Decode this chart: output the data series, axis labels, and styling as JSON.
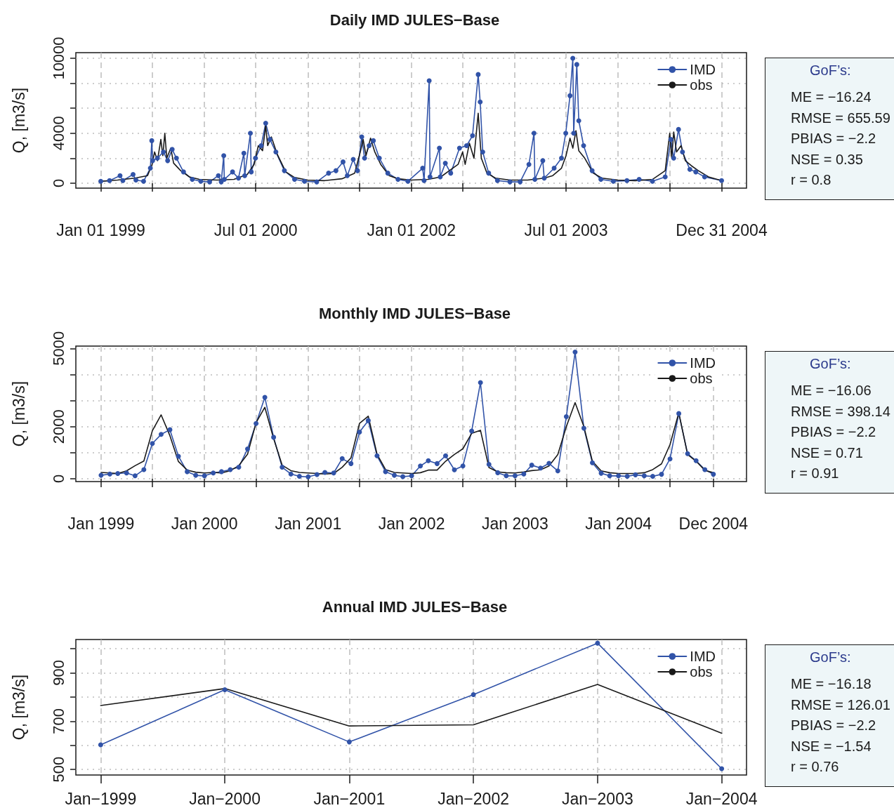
{
  "chart_data": [
    {
      "type": "line",
      "title": "Daily IMD JULES−Base",
      "ylabel": "Q, [m3/s]",
      "xlim": [
        "1998-10-05",
        "2005-03-29"
      ],
      "ylim": [
        -400,
        10450
      ],
      "xticks": [
        {
          "value": "1999-01-01",
          "label": "Jan 01 1999"
        },
        {
          "value": "1999-07-01",
          "label": null
        },
        {
          "value": "2000-01-01",
          "label": null
        },
        {
          "value": "2000-07-01",
          "label": "Jul 01 2000"
        },
        {
          "value": "2001-01-01",
          "label": null
        },
        {
          "value": "2001-07-01",
          "label": null
        },
        {
          "value": "2002-01-01",
          "label": "Jan 01 2002"
        },
        {
          "value": "2002-07-01",
          "label": null
        },
        {
          "value": "2003-01-01",
          "label": null
        },
        {
          "value": "2003-07-01",
          "label": "Jul 01 2003"
        },
        {
          "value": "2004-01-01",
          "label": null
        },
        {
          "value": "2004-07-01",
          "label": null
        },
        {
          "value": "2004-12-31",
          "label": "Dec 31 2004"
        }
      ],
      "yticks": [
        0,
        {
          "value": 2000,
          "label": null
        },
        4000,
        {
          "value": 6000,
          "label": null
        },
        {
          "value": 8000,
          "label": null
        },
        10000
      ],
      "grid": true,
      "legend": "top right",
      "marker": "circle",
      "annotations": [
        "GoF’s:",
        "ME = −16.24",
        "RMSE = 655.59",
        "PBIAS = −2.2",
        "NSE = 0.35",
        "r = 0.8"
      ],
      "series": [
        {
          "name": "IMD",
          "color": "#3153a8",
          "x": [
            "1999-01-01",
            "1999-02-01",
            "1999-03-10",
            "1999-03-20",
            "1999-04-25",
            "1999-05-05",
            "1999-06-01",
            "1999-06-25",
            "1999-06-30",
            "1999-07-03",
            "1999-07-20",
            "1999-08-10",
            "1999-08-25",
            "1999-09-10",
            "1999-09-25",
            "1999-10-20",
            "1999-11-20",
            "1999-12-20",
            "2000-01-20",
            "2000-02-20",
            "2000-03-01",
            "2000-03-10",
            "2000-03-12",
            "2000-04-10",
            "2000-05-01",
            "2000-05-20",
            "2000-05-23",
            "2000-06-12",
            "2000-06-15",
            "2000-06-30",
            "2000-07-20",
            "2000-08-05",
            "2000-08-20",
            "2000-09-10",
            "2000-10-10",
            "2000-11-15",
            "2000-12-20",
            "2001-02-01",
            "2001-03-15",
            "2001-04-10",
            "2001-05-05",
            "2001-05-20",
            "2001-06-10",
            "2001-06-25",
            "2001-07-10",
            "2001-07-20",
            "2001-08-05",
            "2001-08-20",
            "2001-09-10",
            "2001-10-10",
            "2001-11-15",
            "2001-12-20",
            "2002-02-10",
            "2002-02-15",
            "2002-03-05",
            "2002-03-08",
            "2002-04-10",
            "2002-04-13",
            "2002-05-01",
            "2002-05-20",
            "2002-06-20",
            "2002-07-15",
            "2002-08-05",
            "2002-08-25",
            "2002-09-01",
            "2002-09-10",
            "2002-10-01",
            "2002-11-01",
            "2002-12-15",
            "2003-01-20",
            "2003-02-20",
            "2003-03-10",
            "2003-03-13",
            "2003-04-10",
            "2003-04-15",
            "2003-05-20",
            "2003-06-15",
            "2003-06-30",
            "2003-07-15",
            "2003-07-25",
            "2003-07-28",
            "2003-08-08",
            "2003-08-15",
            "2003-09-01",
            "2003-10-01",
            "2003-11-01",
            "2003-12-15",
            "2004-02-01",
            "2004-03-15",
            "2004-05-01",
            "2004-06-15",
            "2004-07-05",
            "2004-07-15",
            "2004-08-01",
            "2004-08-15",
            "2004-09-10",
            "2004-10-01",
            "2004-11-01",
            "2004-12-31"
          ],
          "values": [
            150,
            200,
            600,
            200,
            700,
            250,
            150,
            1200,
            3400,
            1800,
            2000,
            2500,
            1800,
            2700,
            2000,
            900,
            300,
            150,
            100,
            600,
            100,
            2200,
            300,
            900,
            400,
            2400,
            600,
            4000,
            900,
            2000,
            3000,
            4800,
            3500,
            2500,
            1000,
            300,
            150,
            100,
            800,
            1000,
            1700,
            600,
            1900,
            1000,
            3700,
            2000,
            3000,
            3400,
            2000,
            800,
            300,
            150,
            1200,
            200,
            8200,
            500,
            2800,
            500,
            1600,
            800,
            2800,
            3000,
            3800,
            8700,
            6500,
            2500,
            800,
            200,
            100,
            100,
            1500,
            4000,
            300,
            1800,
            400,
            1200,
            2000,
            4000,
            7000,
            10000,
            4000,
            9500,
            5000,
            3000,
            1000,
            300,
            150,
            200,
            300,
            150,
            500,
            3500,
            2000,
            4300,
            2500,
            1100,
            900,
            500,
            200
          ]
        },
        {
          "name": "obs",
          "color": "#1a1a1a",
          "marker": "none",
          "x": [
            "1999-01-01",
            "1999-03-01",
            "1999-05-01",
            "1999-06-15",
            "1999-07-01",
            "1999-07-10",
            "1999-07-20",
            "1999-08-01",
            "1999-08-08",
            "1999-08-15",
            "1999-08-22",
            "1999-09-05",
            "1999-09-15",
            "1999-10-10",
            "1999-11-10",
            "1999-12-15",
            "2000-02-15",
            "2000-04-15",
            "2000-06-01",
            "2000-06-25",
            "2000-07-10",
            "2000-07-25",
            "2000-08-05",
            "2000-08-12",
            "2000-08-25",
            "2000-09-15",
            "2000-10-15",
            "2000-11-15",
            "2000-12-31",
            "2001-03-01",
            "2001-05-01",
            "2001-06-15",
            "2001-07-05",
            "2001-07-15",
            "2001-07-25",
            "2001-08-10",
            "2001-08-25",
            "2001-09-15",
            "2001-10-15",
            "2001-11-15",
            "2001-12-31",
            "2002-03-01",
            "2002-04-15",
            "2002-05-15",
            "2002-06-15",
            "2002-07-01",
            "2002-07-10",
            "2002-07-25",
            "2002-08-10",
            "2002-08-25",
            "2002-09-05",
            "2002-09-25",
            "2002-10-25",
            "2002-12-15",
            "2003-02-15",
            "2003-04-15",
            "2003-05-15",
            "2003-06-15",
            "2003-07-01",
            "2003-07-15",
            "2003-07-25",
            "2003-08-05",
            "2003-08-15",
            "2003-09-05",
            "2003-10-05",
            "2003-11-05",
            "2003-12-31",
            "2004-03-01",
            "2004-05-01",
            "2004-06-15",
            "2004-07-01",
            "2004-07-08",
            "2004-07-15",
            "2004-07-25",
            "2004-08-10",
            "2004-08-25",
            "2004-09-15",
            "2004-10-10",
            "2004-11-15",
            "2004-12-31"
          ],
          "values": [
            150,
            250,
            400,
            600,
            1500,
            2500,
            1800,
            3500,
            2200,
            4000,
            2000,
            2800,
            1600,
            1000,
            500,
            300,
            250,
            300,
            700,
            1500,
            3000,
            2600,
            4600,
            3000,
            3700,
            2300,
            900,
            450,
            250,
            200,
            350,
            800,
            2500,
            3500,
            2200,
            3600,
            2500,
            1500,
            600,
            350,
            250,
            300,
            500,
            1000,
            1500,
            2500,
            1500,
            3200,
            2000,
            5600,
            2000,
            800,
            400,
            250,
            250,
            400,
            600,
            1200,
            2200,
            3600,
            2800,
            4200,
            2600,
            2000,
            800,
            400,
            250,
            200,
            300,
            1000,
            4000,
            2000,
            4100,
            2500,
            3000,
            1800,
            1400,
            1000,
            500,
            200
          ]
        }
      ]
    },
    {
      "type": "line",
      "title": "Monthly IMD JULES−Base",
      "ylabel": "Q, [m3/s]",
      "xlim": [
        "1998-10-04",
        "2005-03-28"
      ],
      "ylim": [
        -110,
        5090
      ],
      "xticks": [
        {
          "value": "1999-01",
          "label": "Jan 1999"
        },
        {
          "value": "1999-07",
          "label": null
        },
        {
          "value": "2000-01",
          "label": "Jan 2000"
        },
        {
          "value": "2000-07",
          "label": null
        },
        {
          "value": "2001-01",
          "label": "Jan 2001"
        },
        {
          "value": "2001-07",
          "label": null
        },
        {
          "value": "2002-01",
          "label": "Jan 2002"
        },
        {
          "value": "2002-07",
          "label": null
        },
        {
          "value": "2003-01",
          "label": "Jan 2003"
        },
        {
          "value": "2003-07",
          "label": null
        },
        {
          "value": "2004-01",
          "label": "Jan 2004"
        },
        {
          "value": "2004-07",
          "label": null
        },
        {
          "value": "2004-12",
          "label": "Dec 2004"
        }
      ],
      "yticks": [
        0,
        {
          "value": 1000,
          "label": null
        },
        2000,
        {
          "value": 3000,
          "label": null
        },
        {
          "value": 4000,
          "label": null
        },
        5000
      ],
      "grid": true,
      "legend": "top right",
      "marker": "circle",
      "annotations": [
        "GoF’s:",
        "ME = −16.06",
        "RMSE = 398.14",
        "PBIAS = −2.2",
        "NSE = 0.71",
        "r = 0.91"
      ],
      "x": [
        "1999-01",
        "1999-02",
        "1999-03",
        "1999-04",
        "1999-05",
        "1999-06",
        "1999-07",
        "1999-08",
        "1999-09",
        "1999-10",
        "1999-11",
        "1999-12",
        "2000-01",
        "2000-02",
        "2000-03",
        "2000-04",
        "2000-05",
        "2000-06",
        "2000-07",
        "2000-08",
        "2000-09",
        "2000-10",
        "2000-11",
        "2000-12",
        "2001-01",
        "2001-02",
        "2001-03",
        "2001-04",
        "2001-05",
        "2001-06",
        "2001-07",
        "2001-08",
        "2001-09",
        "2001-10",
        "2001-11",
        "2001-12",
        "2002-01",
        "2002-02",
        "2002-03",
        "2002-04",
        "2002-05",
        "2002-06",
        "2002-07",
        "2002-08",
        "2002-09",
        "2002-10",
        "2002-11",
        "2002-12",
        "2003-01",
        "2003-02",
        "2003-03",
        "2003-04",
        "2003-05",
        "2003-06",
        "2003-07",
        "2003-08",
        "2003-09",
        "2003-10",
        "2003-11",
        "2003-12",
        "2004-01",
        "2004-02",
        "2004-03",
        "2004-04",
        "2004-05",
        "2004-06",
        "2004-07",
        "2004-08",
        "2004-09",
        "2004-10",
        "2004-11",
        "2004-12"
      ],
      "series": [
        {
          "name": "IMD",
          "color": "#3153a8",
          "values": [
            130,
            180,
            200,
            220,
            110,
            350,
            1350,
            1700,
            1880,
            860,
            270,
            130,
            110,
            220,
            270,
            350,
            440,
            1140,
            2120,
            3120,
            1590,
            440,
            180,
            90,
            70,
            160,
            240,
            220,
            770,
            580,
            1790,
            2230,
            880,
            270,
            130,
            80,
            110,
            490,
            690,
            580,
            880,
            340,
            490,
            1830,
            3690,
            550,
            230,
            110,
            110,
            180,
            520,
            410,
            590,
            300,
            2380,
            4860,
            1940,
            610,
            210,
            110,
            110,
            90,
            150,
            110,
            90,
            170,
            760,
            2500,
            960,
            690,
            350,
            170
          ]
        },
        {
          "name": "obs",
          "color": "#1a1a1a",
          "marker": "none",
          "values": [
            240,
            220,
            200,
            300,
            500,
            680,
            1840,
            2450,
            1650,
            660,
            330,
            250,
            220,
            240,
            220,
            310,
            500,
            940,
            2150,
            2740,
            1540,
            520,
            310,
            240,
            220,
            200,
            180,
            200,
            440,
            800,
            2120,
            2400,
            940,
            350,
            240,
            220,
            200,
            230,
            330,
            330,
            670,
            930,
            1150,
            1740,
            1860,
            430,
            260,
            230,
            220,
            260,
            310,
            340,
            490,
            930,
            2000,
            2920,
            2000,
            670,
            300,
            230,
            200,
            200,
            200,
            230,
            350,
            570,
            1310,
            2530,
            930,
            670,
            320,
            230
          ]
        }
      ]
    },
    {
      "type": "line",
      "title": "Annual IMD JULES−Base",
      "ylabel": "Q, [m3/s]",
      "xlim": [
        "1998-10-20",
        "2004-03-14"
      ],
      "ylim": [
        477,
        1038
      ],
      "xticks": [
        {
          "value": "1999-01",
          "label": "Jan−1999"
        },
        {
          "value": "2000-01",
          "label": "Jan−2000"
        },
        {
          "value": "2001-01",
          "label": "Jan−2001"
        },
        {
          "value": "2002-01",
          "label": "Jan−2002"
        },
        {
          "value": "2003-01",
          "label": "Jan−2003"
        },
        {
          "value": "2004-01",
          "label": "Jan−2004"
        }
      ],
      "yticks": [
        500,
        {
          "value": 600,
          "label": null
        },
        700,
        {
          "value": 800,
          "label": null
        },
        900,
        {
          "value": 1000,
          "label": null
        }
      ],
      "grid": true,
      "legend": "top right",
      "marker": "circle",
      "annotations": [
        "GoF’s:",
        "ME = −16.18",
        "RMSE = 126.01",
        "PBIAS = −2.2",
        "NSE = −1.54",
        "r = 0.76"
      ],
      "x": [
        "1999-01",
        "2000-01",
        "2001-01",
        "2002-01",
        "2003-01",
        "2004-01"
      ],
      "series": [
        {
          "name": "IMD",
          "color": "#3153a8",
          "values": [
            602,
            830,
            614,
            810,
            1023,
            503
          ]
        },
        {
          "name": "obs",
          "color": "#1a1a1a",
          "marker": "none",
          "values": [
            765,
            835,
            680,
            685,
            852,
            650
          ]
        }
      ]
    }
  ]
}
